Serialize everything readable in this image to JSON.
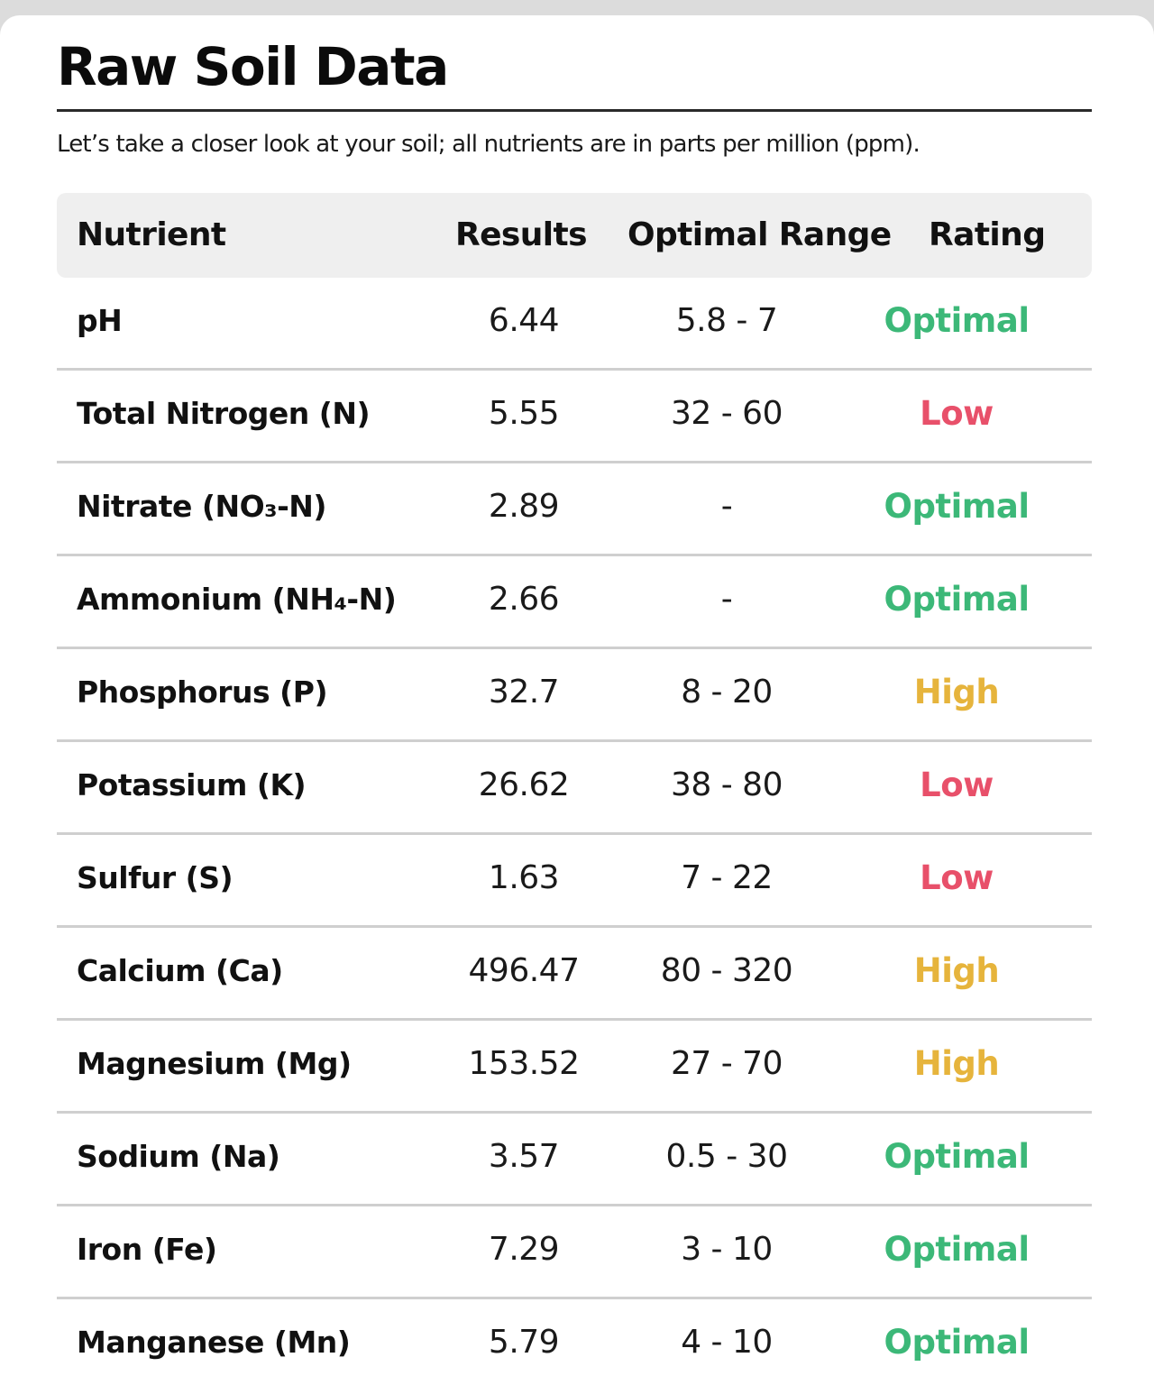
{
  "title": "Raw Soil Data",
  "subtitle": "Let’s take a closer look at your soil; all nutrients are in parts per million (ppm).",
  "table": {
    "headers": {
      "nutrient": "Nutrient",
      "results": "Results",
      "range": "Optimal Range",
      "rating": "Rating"
    },
    "rows": [
      {
        "nutrient": "pH",
        "results": "6.44",
        "range": "5.8 - 7",
        "rating": "Optimal"
      },
      {
        "nutrient": "Total Nitrogen (N)",
        "results": "5.55",
        "range": "32 - 60",
        "rating": "Low"
      },
      {
        "nutrient": "Nitrate (NO₃-N)",
        "results": "2.89",
        "range": "-",
        "rating": "Optimal"
      },
      {
        "nutrient": "Ammonium (NH₄-N)",
        "results": "2.66",
        "range": "-",
        "rating": "Optimal"
      },
      {
        "nutrient": "Phosphorus (P)",
        "results": "32.7",
        "range": "8 - 20",
        "rating": "High"
      },
      {
        "nutrient": "Potassium (K)",
        "results": "26.62",
        "range": "38 - 80",
        "rating": "Low"
      },
      {
        "nutrient": "Sulfur (S)",
        "results": "1.63",
        "range": "7 - 22",
        "rating": "Low"
      },
      {
        "nutrient": "Calcium (Ca)",
        "results": "496.47",
        "range": "80 - 320",
        "rating": "High"
      },
      {
        "nutrient": "Magnesium (Mg)",
        "results": "153.52",
        "range": "27 - 70",
        "rating": "High"
      },
      {
        "nutrient": "Sodium (Na)",
        "results": "3.57",
        "range": "0.5 - 30",
        "rating": "Optimal"
      },
      {
        "nutrient": "Iron (Fe)",
        "results": "7.29",
        "range": "3 - 10",
        "rating": "Optimal"
      },
      {
        "nutrient": "Manganese (Mn)",
        "results": "5.79",
        "range": "4 - 10",
        "rating": "Optimal"
      }
    ]
  },
  "rating_colors": {
    "Optimal": "#3cb878",
    "Low": "#e8506a",
    "High": "#e6b43c"
  }
}
